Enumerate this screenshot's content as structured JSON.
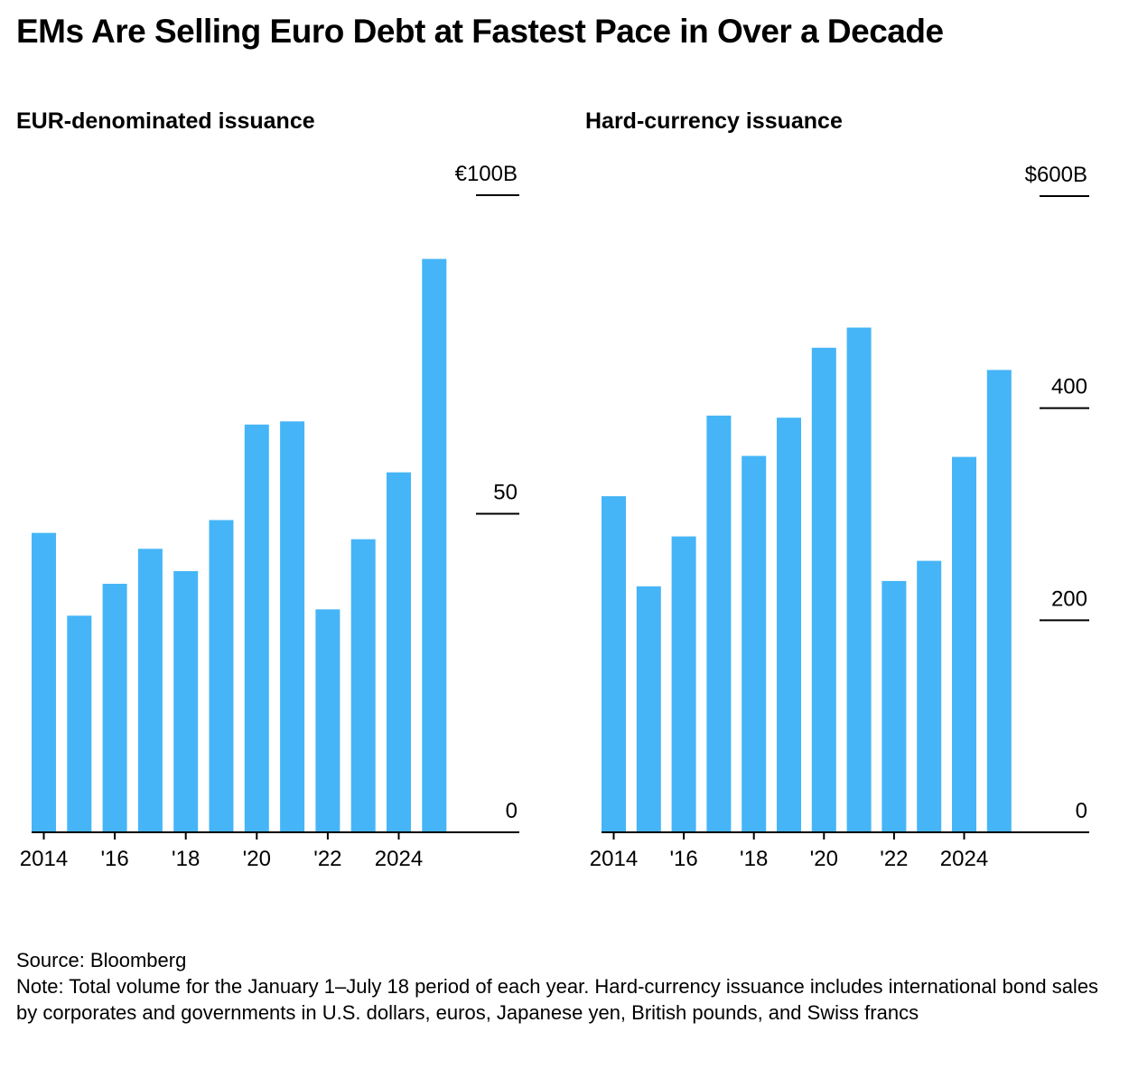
{
  "title": "EMs Are Selling Euro Debt at Fastest Pace in Over a Decade",
  "colors": {
    "bar": "#45B5F7",
    "axis": "#000000",
    "text": "#000000"
  },
  "chart_data": [
    {
      "type": "bar",
      "title": "EUR-denominated issuance",
      "unit": "€ billions",
      "categories": [
        "2014",
        "2015",
        "2016",
        "2017",
        "2018",
        "2019",
        "2020",
        "2021",
        "2022",
        "2023",
        "2024",
        "2025"
      ],
      "values": [
        47,
        34,
        39,
        44.5,
        41,
        49,
        64,
        64.5,
        35,
        46,
        56.5,
        90
      ],
      "ylim": [
        0,
        100
      ],
      "yticks": [
        {
          "value": 100,
          "label": "€100B"
        },
        {
          "value": 50,
          "label": "50"
        },
        {
          "value": 0,
          "label": "0"
        }
      ],
      "xticks": [
        {
          "index": 0,
          "label": "2014"
        },
        {
          "index": 2,
          "label": "'16"
        },
        {
          "index": 4,
          "label": "'18"
        },
        {
          "index": 6,
          "label": "'20"
        },
        {
          "index": 8,
          "label": "'22"
        },
        {
          "index": 10,
          "label": "2024"
        }
      ],
      "xlabel": "",
      "ylabel": ""
    },
    {
      "type": "bar",
      "title": "Hard-currency issuance",
      "unit": "$ billions",
      "categories": [
        "2014",
        "2015",
        "2016",
        "2017",
        "2018",
        "2019",
        "2020",
        "2021",
        "2022",
        "2023",
        "2024",
        "2025"
      ],
      "values": [
        317,
        232,
        279,
        393,
        355,
        391,
        457,
        476,
        237,
        256,
        354,
        436
      ],
      "ylim": [
        0,
        600
      ],
      "yticks": [
        {
          "value": 600,
          "label": "$600B"
        },
        {
          "value": 400,
          "label": "400"
        },
        {
          "value": 200,
          "label": "200"
        },
        {
          "value": 0,
          "label": "0"
        }
      ],
      "xticks": [
        {
          "index": 0,
          "label": "2014"
        },
        {
          "index": 2,
          "label": "'16"
        },
        {
          "index": 4,
          "label": "'18"
        },
        {
          "index": 6,
          "label": "'20"
        },
        {
          "index": 8,
          "label": "'22"
        },
        {
          "index": 10,
          "label": "2024"
        }
      ],
      "xlabel": "",
      "ylabel": ""
    }
  ],
  "footer": {
    "source": "Source: Bloomberg",
    "note": "Note: Total volume for the January 1–July 18 period of each year. Hard-currency issuance includes international bond sales by corporates and governments in U.S. dollars, euros, Japanese yen, British pounds, and Swiss francs"
  }
}
